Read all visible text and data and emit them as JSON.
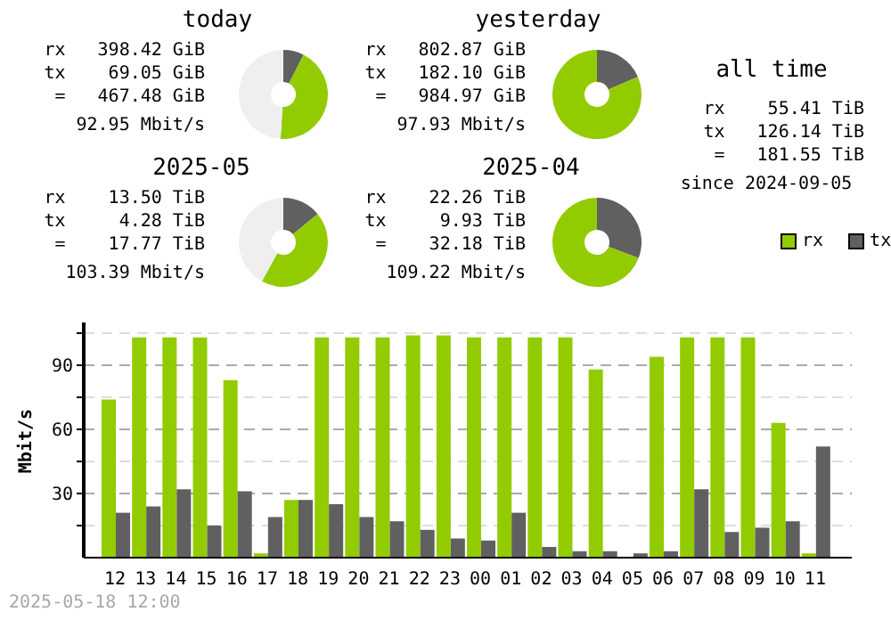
{
  "chart_data": [
    {
      "type": "donut",
      "title": "today",
      "categories": [
        null,
        null,
        null
      ],
      "values": [
        7.5,
        43.5,
        49
      ],
      "colors": [
        "#606060",
        "#92cc00",
        "#efefef"
      ],
      "annotations": [
        "rx   398.42 GiB",
        "tx    69.05 GiB",
        "=   467.48 GiB",
        "92.95 Mbit/s"
      ]
    },
    {
      "type": "donut",
      "title": "yesterday",
      "categories": [
        null,
        null
      ],
      "values": [
        18.5,
        81.5
      ],
      "colors": [
        "#606060",
        "#92cc00"
      ],
      "annotations": [
        "rx   802.87 GiB",
        "tx   182.10 GiB",
        "=   984.97 GiB",
        "97.93 Mbit/s"
      ]
    },
    {
      "type": "donut",
      "title": "2025-05",
      "categories": [
        null,
        null,
        null
      ],
      "values": [
        14,
        44,
        42
      ],
      "colors": [
        "#606060",
        "#92cc00",
        "#efefef"
      ],
      "annotations": [
        "rx    13.50 TiB",
        "tx     4.28 TiB",
        "=    17.77 TiB",
        "103.39 Mbit/s"
      ]
    },
    {
      "type": "donut",
      "title": "2025-04",
      "categories": [
        null,
        null
      ],
      "values": [
        30.8,
        69.2
      ],
      "colors": [
        "#606060",
        "#92cc00"
      ],
      "annotations": [
        "rx    22.26 TiB",
        "tx     9.93 TiB",
        "=    32.18 TiB",
        "109.22 Mbit/s"
      ]
    },
    {
      "type": "other",
      "title": "all time",
      "annotations": [
        "rx    55.41 TiB",
        "tx   126.14 TiB",
        "=   181.55 TiB",
        "since 2024-09-05"
      ]
    },
    {
      "type": "bar",
      "categories": [
        "12",
        "13",
        "14",
        "15",
        "16",
        "17",
        "18",
        "19",
        "20",
        "21",
        "22",
        "23",
        "00",
        "01",
        "02",
        "03",
        "04",
        "05",
        "06",
        "07",
        "08",
        "09",
        "10",
        "11"
      ],
      "series": [
        {
          "name": "rx",
          "color": "#92cc00",
          "values": [
            74,
            103,
            103,
            103,
            83,
            2,
            27,
            103,
            103,
            103,
            104,
            104,
            103,
            103,
            103,
            103,
            88,
            0,
            94,
            103,
            103,
            103,
            63,
            2
          ]
        },
        {
          "name": "tx",
          "color": "#606060",
          "values": [
            21,
            24,
            32,
            15,
            31,
            19,
            27,
            25,
            19,
            17,
            13,
            9,
            8,
            21,
            5,
            3,
            3,
            2,
            3,
            32,
            12,
            14,
            17,
            52
          ]
        }
      ],
      "ylabel": "Mbit/s",
      "ylim": [
        0,
        110
      ],
      "yticks": [
        {
          "value": 15,
          "label": null
        },
        30,
        {
          "value": 45,
          "label": null
        },
        60,
        {
          "value": 75,
          "label": null
        },
        90,
        {
          "value": 105,
          "label": null
        }
      ],
      "grid": "y",
      "legend": "top right",
      "annotations": [
        "2025-05-18 12:00"
      ]
    }
  ]
}
